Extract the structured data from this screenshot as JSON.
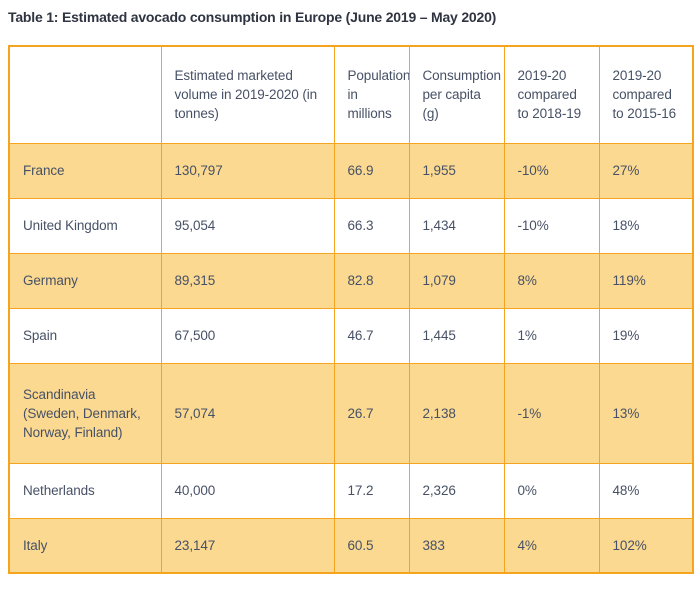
{
  "title": "Table 1: Estimated avocado consumption in Europe (June 2019 – May 2020)",
  "colors": {
    "border_orange": "#f5a41f",
    "row_amber": "#fbd990",
    "row_white": "#ffffff",
    "text_slate": "#475166",
    "title_dark": "#2f3441",
    "page_background": "#ffffff"
  },
  "table": {
    "headers": [
      "",
      "Estimated marketed volume in 2019-2020 (in tonnes)",
      "Population in millions",
      "Consumption per capita (g)",
      "2019-20 compared to 2018-19",
      "2019-20 compared to 2015-16"
    ],
    "rows": [
      [
        "France",
        "130,797",
        "66.9",
        "1,955",
        "-10%",
        "27%"
      ],
      [
        "United Kingdom",
        "95,054",
        "66.3",
        "1,434",
        "-10%",
        "18%"
      ],
      [
        "Germany",
        "89,315",
        "82.8",
        "1,079",
        "8%",
        "119%"
      ],
      [
        "Spain",
        "67,500",
        "46.7",
        "1,445",
        "1%",
        "19%"
      ],
      [
        "Scandinavia (Sweden, Denmark, Norway, Finland)",
        "57,074",
        "26.7",
        "2,138",
        "-1%",
        "13%"
      ],
      [
        "Netherlands",
        "40,000",
        "17.2",
        "2,326",
        "0%",
        "48%"
      ],
      [
        "Italy",
        "23,147",
        "60.5",
        "383",
        "4%",
        "102%"
      ]
    ]
  }
}
